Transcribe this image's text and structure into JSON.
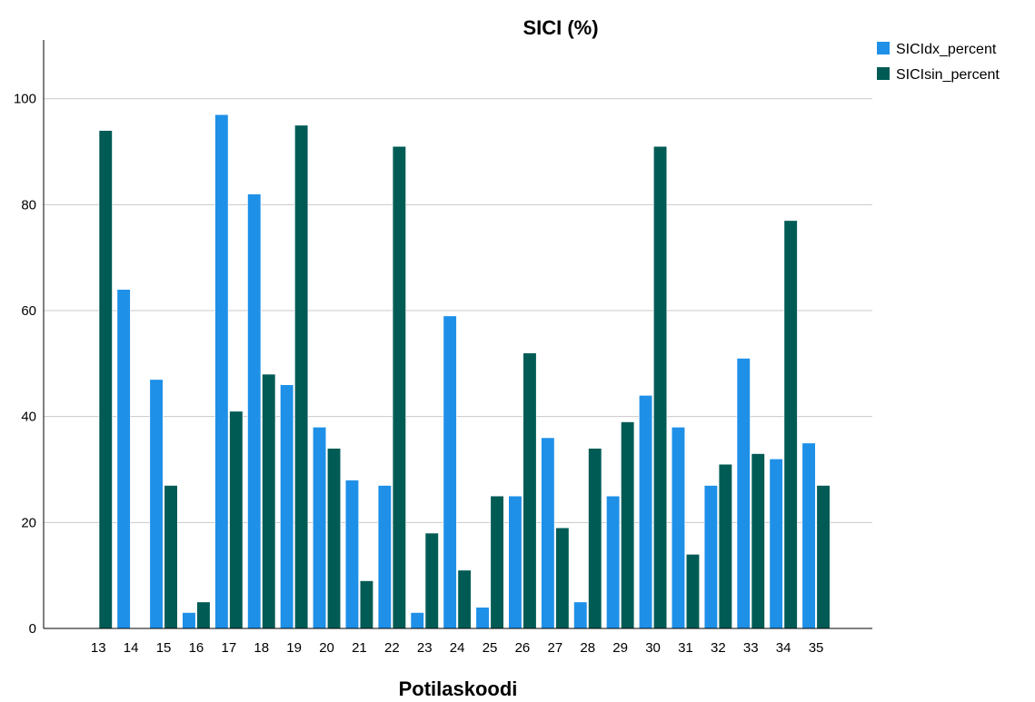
{
  "chart_data": {
    "type": "bar",
    "title": "SICI (%)",
    "xlabel": "Potilaskoodi",
    "ylabel": "",
    "ylim": [
      0,
      110
    ],
    "yticks": [
      0,
      20,
      40,
      60,
      80,
      100
    ],
    "grid": true,
    "legend_position": "top-right",
    "categories": [
      "13",
      "14",
      "15",
      "16",
      "17",
      "18",
      "19",
      "20",
      "21",
      "22",
      "23",
      "24",
      "25",
      "26",
      "27",
      "28",
      "29",
      "30",
      "31",
      "32",
      "33",
      "34",
      "35"
    ],
    "series": [
      {
        "name": "SICIdx_percent",
        "color": "#1e90e8",
        "values": [
          null,
          64,
          47,
          3,
          97,
          82,
          46,
          38,
          28,
          27,
          3,
          59,
          4,
          25,
          36,
          5,
          25,
          44,
          38,
          27,
          51,
          32,
          35
        ]
      },
      {
        "name": "SICIsin_percent",
        "color": "#005b55",
        "values": [
          94,
          null,
          27,
          5,
          41,
          48,
          95,
          34,
          9,
          91,
          18,
          11,
          25,
          52,
          19,
          34,
          39,
          91,
          14,
          31,
          33,
          77,
          27
        ]
      }
    ]
  }
}
